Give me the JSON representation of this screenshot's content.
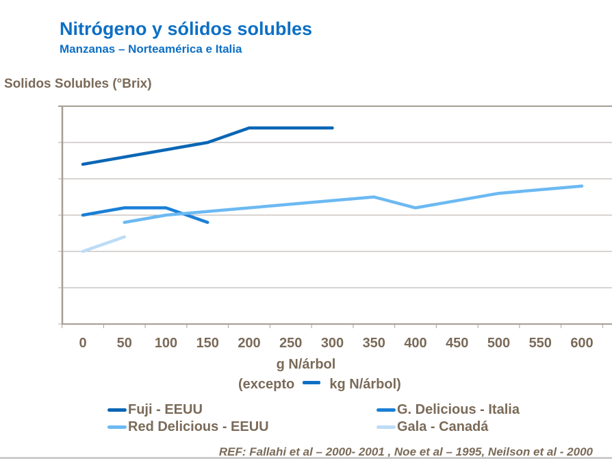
{
  "title": "Nitrógeno y sólidos solubles",
  "subtitle": "Manzanas – Norteamérica e Italia",
  "ref": "REF: Fallahi et al – 2000- 2001 , Noe et al – 1995, Neilson et al - 2000",
  "chart_data": {
    "type": "line",
    "ylabel": "Solidos Solubles (°Brix)",
    "xlabel": "g N/árbol",
    "xlabel_note_prefix": "(excepto",
    "xlabel_note_suffix": "kg N/árbol)",
    "xlabel_note_color": "#0d6fc4",
    "categories": [
      0,
      50,
      100,
      150,
      200,
      250,
      300,
      350,
      400,
      450,
      500,
      550,
      600
    ],
    "ylim": [
      0,
      6
    ],
    "y_ticks_labeled": false,
    "grid": true,
    "legend_placement": "bottom",
    "series": [
      {
        "name": "Fuji - EEUU",
        "color": "#0a66b4",
        "x": [
          0,
          150,
          200,
          300
        ],
        "y": [
          4.4,
          5.0,
          5.4,
          5.4
        ]
      },
      {
        "name": "G. Delicious - Italia",
        "color": "#1a7fd6",
        "x": [
          0,
          50,
          100,
          150
        ],
        "y": [
          3.0,
          3.2,
          3.2,
          2.8
        ]
      },
      {
        "name": "Red Delicious - EEUU",
        "color": "#6cb9f2",
        "x": [
          50,
          100,
          200,
          300,
          350,
          400,
          500,
          600
        ],
        "y": [
          2.8,
          3.0,
          3.2,
          3.4,
          3.5,
          3.2,
          3.6,
          3.8
        ]
      },
      {
        "name": "Gala - Canadá",
        "color": "#bcdcf6",
        "x": [
          0,
          50
        ],
        "y": [
          2.0,
          2.4
        ]
      }
    ]
  }
}
